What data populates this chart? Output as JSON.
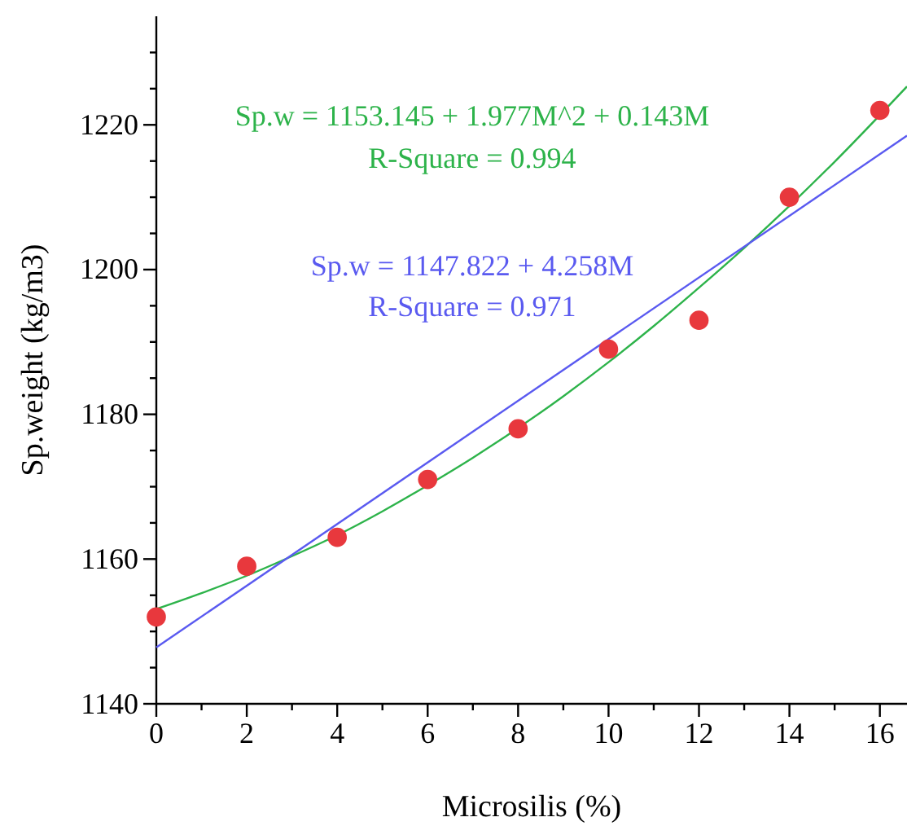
{
  "chart_data": {
    "type": "scatter",
    "xlabel": "Microsilis (%)",
    "ylabel": "Sp.weight (kg/m3)",
    "xlim": [
      0,
      16.6
    ],
    "ylim": [
      1140,
      1235
    ],
    "xticks": [
      0,
      {
        "value": 1,
        "label": null
      },
      2,
      {
        "value": 3,
        "label": null
      },
      4,
      {
        "value": 5,
        "label": null
      },
      6,
      {
        "value": 7,
        "label": null
      },
      8,
      {
        "value": 9,
        "label": null
      },
      10,
      {
        "value": 11,
        "label": null
      },
      12,
      {
        "value": 13,
        "label": null
      },
      14,
      {
        "value": 15,
        "label": null
      },
      16
    ],
    "yticks": [
      1140,
      {
        "value": 1145,
        "label": null
      },
      {
        "value": 1150,
        "label": null
      },
      {
        "value": 1155,
        "label": null
      },
      1160,
      {
        "value": 1165,
        "label": null
      },
      {
        "value": 1170,
        "label": null
      },
      {
        "value": 1175,
        "label": null
      },
      1180,
      {
        "value": 1185,
        "label": null
      },
      {
        "value": 1190,
        "label": null
      },
      {
        "value": 1195,
        "label": null
      },
      1200,
      {
        "value": 1205,
        "label": null
      },
      {
        "value": 1210,
        "label": null
      },
      {
        "value": 1215,
        "label": null
      },
      1220,
      {
        "value": 1225,
        "label": null
      },
      {
        "value": 1230,
        "label": null
      }
    ],
    "grid": false,
    "marker": "circle",
    "series": [
      {
        "type": "line",
        "color": "#2db34a",
        "marker": "none",
        "x": [
          0,
          1,
          2,
          3,
          4,
          5,
          6,
          7,
          9,
          10,
          11,
          12,
          13,
          14,
          15,
          16.6
        ],
        "values": [
          1153.1,
          1155.3,
          1157.7,
          1160.4,
          1163.3,
          1166.6,
          1170.2,
          1174.0,
          1182.5,
          1187.2,
          1192.2,
          1197.5,
          1203.0,
          1208.8,
          1214.9,
          1225.3
        ]
      },
      {
        "type": "line",
        "color": "#5a5af0",
        "marker": "none",
        "x": [
          0,
          16.6
        ],
        "values": [
          1147.8,
          1218.5
        ]
      },
      {
        "color": "#e8383d",
        "x": [
          0,
          2,
          4,
          6,
          8,
          10,
          12,
          14,
          16
        ],
        "values": [
          1152,
          1159,
          1163,
          1171,
          1178,
          1189,
          1193,
          1210,
          1222
        ]
      }
    ],
    "annotations": [
      "Sp.w = 1153.145 + 1.977M^2 + 0.143M",
      "R-Square = 0.994",
      "Sp.w = 1147.822 + 4.258M",
      "R-Square = 0.971"
    ]
  }
}
